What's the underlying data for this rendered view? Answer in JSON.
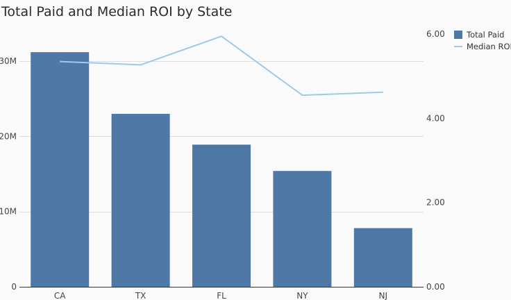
{
  "chart_data": {
    "type": "bar",
    "title": "Total Paid and Median ROI by State",
    "categories": [
      "CA",
      "TX",
      "FL",
      "NY",
      "NJ"
    ],
    "series": [
      {
        "name": "Total Paid",
        "type": "bar",
        "axis": "left",
        "color": "#4e79a7",
        "values": [
          31200000,
          23000000,
          18900000,
          15400000,
          7800000
        ]
      },
      {
        "name": "Median ROI",
        "type": "line",
        "axis": "right",
        "color": "#9ecae9",
        "values": [
          5.35,
          5.27,
          5.95,
          4.55,
          4.62
        ]
      }
    ],
    "y_left": {
      "ylim": [
        0,
        35000000
      ],
      "ticks": [
        0,
        10000000,
        20000000,
        30000000
      ],
      "tick_labels": [
        "0",
        "10M",
        "20M",
        "30M"
      ]
    },
    "y_right": {
      "ylim": [
        0,
        6.25
      ],
      "ticks": [
        0,
        2,
        4,
        6
      ],
      "tick_labels": [
        "0.00",
        "2.00",
        "4.00",
        "6.00"
      ]
    },
    "grid": true,
    "legend_position": "top-right"
  }
}
